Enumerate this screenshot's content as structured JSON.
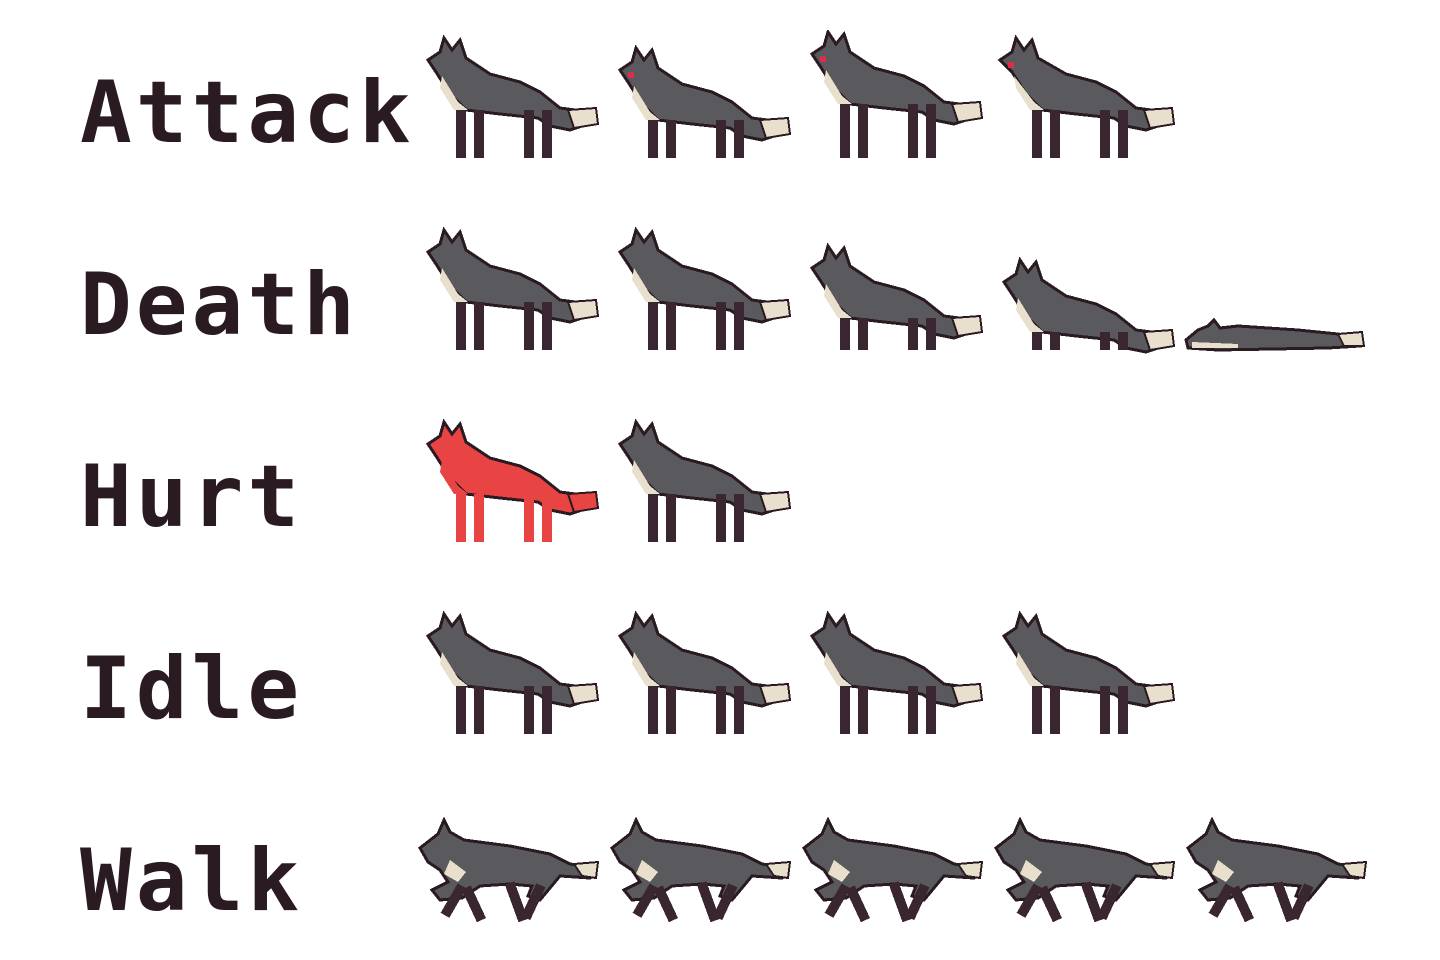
{
  "palette": {
    "body": "#5a5a5e",
    "outline": "#2a1a22",
    "belly": "#e8e0cc",
    "leg_dark": "#3a2630",
    "hurt": "#e84444",
    "eye": "#d8304a"
  },
  "animations": [
    {
      "name": "Attack",
      "frames": [
        {
          "pose": "stand"
        },
        {
          "pose": "crouch",
          "eye": true
        },
        {
          "pose": "rear",
          "eye": true
        },
        {
          "pose": "lunge",
          "eye": true
        }
      ]
    },
    {
      "name": "Death",
      "frames": [
        {
          "pose": "stand"
        },
        {
          "pose": "stand"
        },
        {
          "pose": "low"
        },
        {
          "pose": "lower"
        },
        {
          "pose": "lying"
        }
      ]
    },
    {
      "name": "Hurt",
      "frames": [
        {
          "pose": "stand",
          "hurt": true
        },
        {
          "pose": "stand"
        }
      ]
    },
    {
      "name": "Idle",
      "frames": [
        {
          "pose": "stand"
        },
        {
          "pose": "stand"
        },
        {
          "pose": "stand"
        },
        {
          "pose": "stand"
        }
      ]
    },
    {
      "name": "Walk",
      "frames": [
        {
          "pose": "run"
        },
        {
          "pose": "run"
        },
        {
          "pose": "run"
        },
        {
          "pose": "run"
        },
        {
          "pose": "run"
        }
      ]
    }
  ]
}
